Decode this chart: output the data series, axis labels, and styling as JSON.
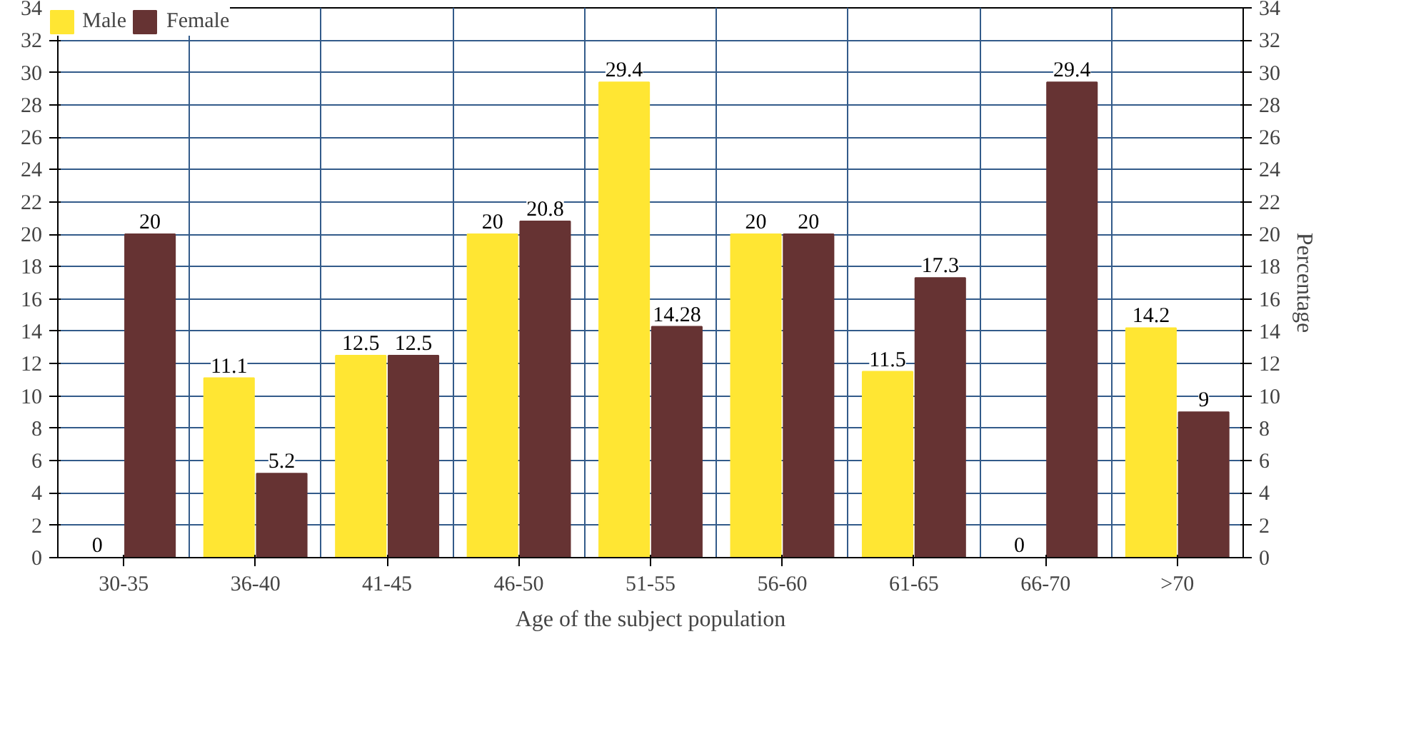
{
  "chart_data": {
    "type": "bar",
    "xlabel": "Age of the subject population",
    "y2label": "Percentage",
    "categories": [
      "30-35",
      "36-40",
      "41-45",
      "46-50",
      "51-55",
      "56-60",
      "61-65",
      "66-70",
      ">70"
    ],
    "series": [
      {
        "name": "Male",
        "color": "#ffe633",
        "values": [
          0,
          11.1,
          12.5,
          20,
          29.4,
          20,
          11.5,
          0,
          14.2
        ]
      },
      {
        "name": "Female",
        "color": "#663333",
        "values": [
          20,
          5.2,
          12.5,
          20.8,
          14.28,
          20,
          17.3,
          29.4,
          9
        ]
      }
    ],
    "data_labels": true,
    "ylim": [
      0,
      34
    ],
    "yticks": [
      0,
      2,
      4,
      6,
      8,
      10,
      12,
      14,
      16,
      18,
      20,
      22,
      24,
      26,
      28,
      30,
      32,
      34
    ],
    "y2lim": [
      0,
      34
    ],
    "y2ticks": [
      0,
      2,
      4,
      6,
      8,
      10,
      12,
      14,
      16,
      18,
      20,
      22,
      24,
      26,
      28,
      30,
      32,
      34
    ],
    "grid": true,
    "legend": "top left"
  }
}
